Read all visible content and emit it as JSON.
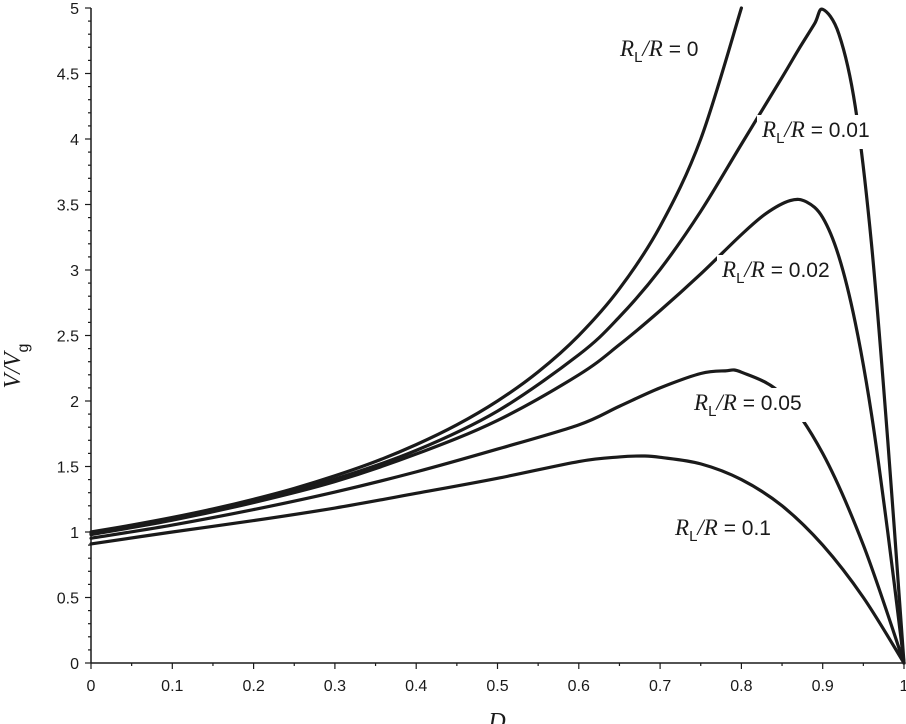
{
  "chart_data": {
    "type": "line",
    "xlabel": "D",
    "ylabel": "V/V",
    "ylabel_subscript": "g",
    "xlim": [
      0,
      1
    ],
    "ylim": [
      0,
      5
    ],
    "x_ticks": [
      "0",
      "0.1",
      "0.2",
      "0.3",
      "0.4",
      "0.5",
      "0.6",
      "0.7",
      "0.8",
      "0.9",
      "1"
    ],
    "y_ticks": [
      "0",
      "0.5",
      "1",
      "1.5",
      "2",
      "2.5",
      "3",
      "3.5",
      "4",
      "4.5",
      "5"
    ],
    "grid": false,
    "series": [
      {
        "name": "RL/R = 0",
        "label": {
          "italic_a": "R",
          "sub": "L",
          "rest_italic": "/R",
          "value": " = 0"
        },
        "x": [
          0,
          0.05,
          0.1,
          0.15,
          0.2,
          0.25,
          0.3,
          0.35,
          0.4,
          0.45,
          0.5,
          0.55,
          0.6,
          0.65,
          0.7,
          0.75,
          0.8
        ],
        "y": [
          1.0,
          1.053,
          1.111,
          1.176,
          1.25,
          1.333,
          1.429,
          1.538,
          1.667,
          1.818,
          2.0,
          2.222,
          2.5,
          2.857,
          3.333,
          4.0,
          5.0
        ]
      },
      {
        "name": "RL/R = 0.01",
        "label": {
          "italic_a": "R",
          "sub": "L",
          "rest_italic": "/R",
          "value": " = 0.01"
        },
        "x": [
          0,
          0.1,
          0.2,
          0.3,
          0.4,
          0.5,
          0.6,
          0.65,
          0.7,
          0.75,
          0.8,
          0.85,
          0.87,
          0.89,
          0.9,
          0.92,
          0.94,
          0.96,
          0.98,
          1.0
        ],
        "y": [
          0.99,
          1.1,
          1.235,
          1.404,
          1.623,
          1.923,
          2.353,
          2.642,
          3.004,
          3.448,
          3.96,
          4.47,
          4.68,
          4.88,
          4.99,
          4.8,
          4.25,
          3.2,
          1.7,
          0.0
        ]
      },
      {
        "name": "RL/R = 0.02",
        "label": {
          "italic_a": "R",
          "sub": "L",
          "rest_italic": "/R",
          "value": " = 0.02"
        },
        "x": [
          0,
          0.1,
          0.2,
          0.3,
          0.4,
          0.5,
          0.6,
          0.65,
          0.7,
          0.75,
          0.8,
          0.83,
          0.86,
          0.88,
          0.9,
          0.92,
          0.94,
          0.96,
          0.98,
          1.0
        ],
        "y": [
          0.98,
          1.09,
          1.225,
          1.385,
          1.595,
          1.852,
          2.2,
          2.43,
          2.69,
          2.97,
          3.27,
          3.43,
          3.53,
          3.52,
          3.4,
          3.1,
          2.6,
          1.9,
          1.0,
          0.0
        ]
      },
      {
        "name": "RL/R = 0.05",
        "label": {
          "italic_a": "R",
          "sub": "L",
          "rest_italic": "/R",
          "value": " = 0.05"
        },
        "x": [
          0,
          0.1,
          0.2,
          0.3,
          0.4,
          0.5,
          0.6,
          0.65,
          0.7,
          0.75,
          0.78,
          0.8,
          0.85,
          0.9,
          0.95,
          1.0
        ],
        "y": [
          0.952,
          1.053,
          1.171,
          1.305,
          1.459,
          1.633,
          1.818,
          1.96,
          2.1,
          2.21,
          2.23,
          2.22,
          2.05,
          1.6,
          0.9,
          0.0
        ]
      },
      {
        "name": "RL/R = 0.1",
        "label": {
          "italic_a": "R",
          "sub": "L",
          "rest_italic": "/R",
          "value": " = 0.1"
        },
        "x": [
          0,
          0.1,
          0.2,
          0.3,
          0.4,
          0.5,
          0.6,
          0.65,
          0.68,
          0.7,
          0.75,
          0.8,
          0.85,
          0.9,
          0.95,
          1.0
        ],
        "y": [
          0.909,
          1.0,
          1.087,
          1.183,
          1.295,
          1.41,
          1.538,
          1.573,
          1.58,
          1.57,
          1.52,
          1.4,
          1.2,
          0.9,
          0.5,
          0.0
        ]
      }
    ]
  }
}
